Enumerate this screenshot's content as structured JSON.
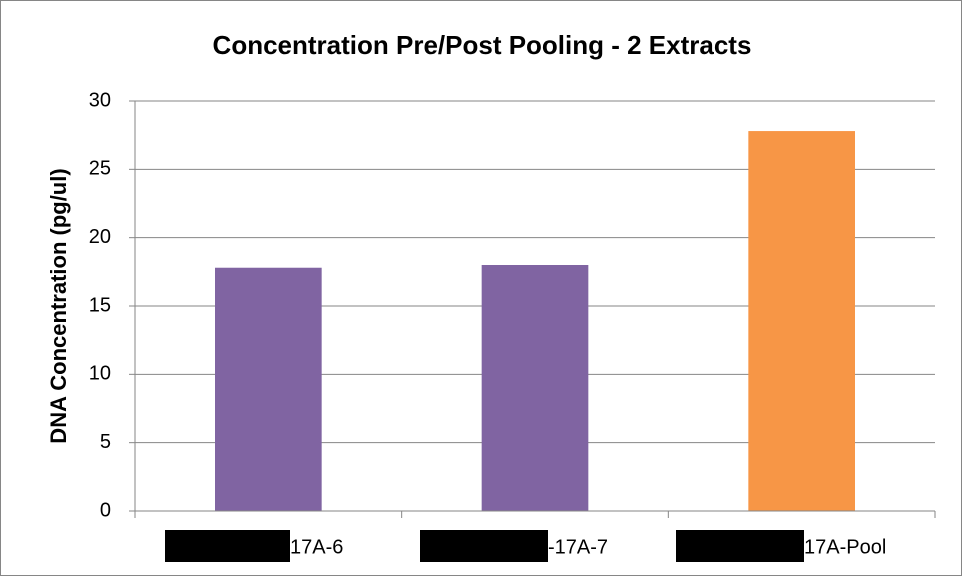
{
  "chart_data": {
    "type": "bar",
    "title": "Concentration Pre/Post Pooling - 2 Extracts",
    "y_label": "DNA Concentration  (pg/ul)",
    "categories": [
      "17A-6",
      "-17A-7",
      "17A-Pool"
    ],
    "values": [
      17.8,
      18.0,
      27.8
    ],
    "colors": [
      "#8064a2",
      "#8064a2",
      "#f79646"
    ],
    "ylim": [
      0,
      30
    ],
    "yticks": [
      0,
      5,
      10,
      15,
      20,
      25,
      30
    ],
    "grid": true
  }
}
